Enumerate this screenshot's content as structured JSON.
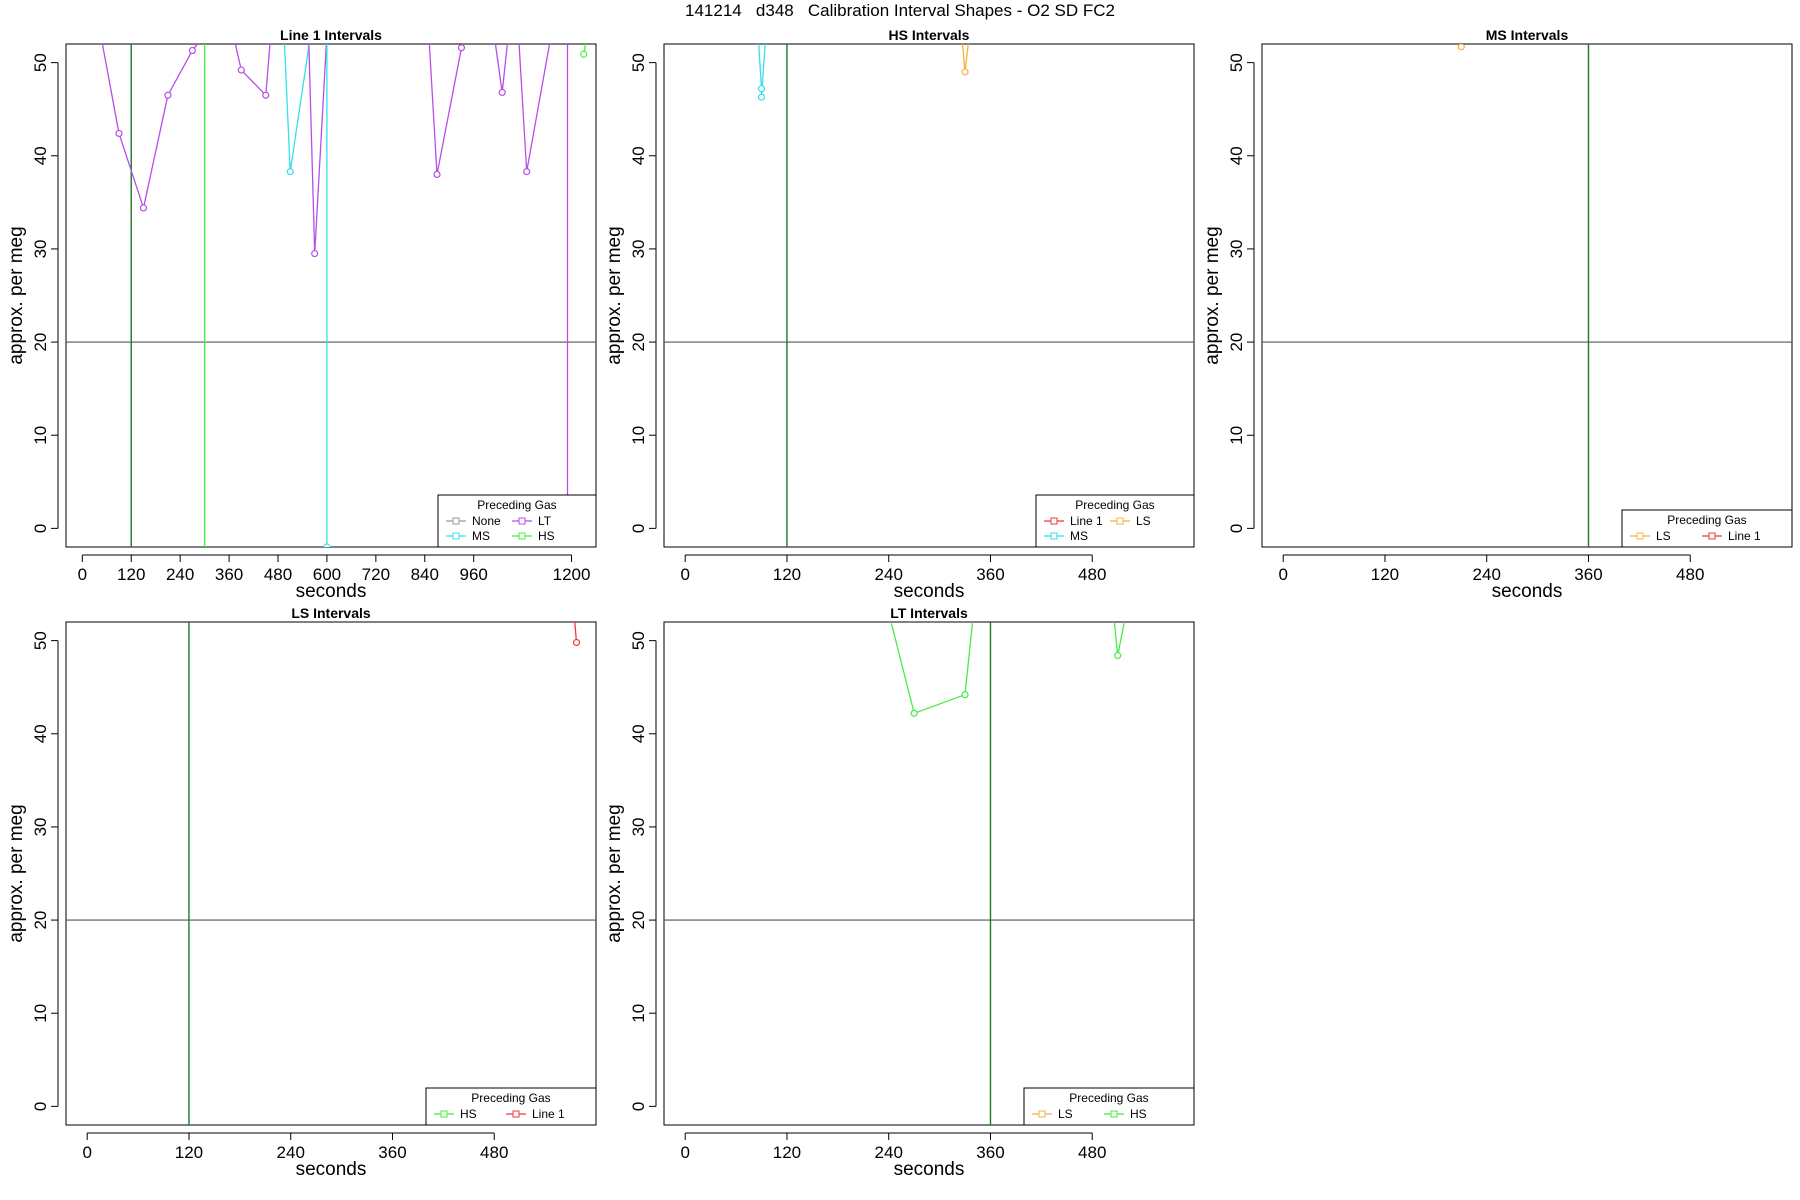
{
  "figure": {
    "title": "141214   d348   Calibration Interval Shapes - O2 SD FC2"
  },
  "colors": {
    "None": "#999999",
    "MS": "#33e0ec",
    "LT": "#b84dea",
    "HS": "#44ee44",
    "Line 1": "#ee3b3b",
    "LS": "#f5b040",
    "axis": "#000000",
    "hline": "#555555",
    "vline": "#1f7a1f"
  },
  "chart_data": [
    {
      "type": "line",
      "title": "Line 1 Intervals",
      "xlabel": "seconds",
      "ylabel": "approx. per meg",
      "xlim": [
        -40,
        1260
      ],
      "ylim": [
        -2,
        52
      ],
      "xticks": [
        0,
        120,
        240,
        360,
        480,
        600,
        720,
        840,
        960,
        1200
      ],
      "yticks": [
        0,
        10,
        20,
        30,
        40,
        50
      ],
      "hline": 20,
      "vlines": [
        {
          "x": 120,
          "color": "vline"
        },
        {
          "x": 300,
          "color": "HS"
        }
      ],
      "legend": {
        "title": "Preceding Gas",
        "position": "bottom-right",
        "entries": [
          "None",
          "LT",
          "MS",
          "HS"
        ],
        "columns": 2
      },
      "series": [
        {
          "name": "LT",
          "points": [
            [
              45,
              53
            ],
            [
              90,
              42.4
            ],
            [
              150,
              34.4
            ],
            [
              210,
              46.5
            ],
            [
              270,
              51.3
            ],
            [
              300,
              53
            ]
          ]
        },
        {
          "name": "LT",
          "points": [
            [
              370,
              53
            ],
            [
              390,
              49.2
            ],
            [
              450,
              46.5
            ],
            [
              462,
              53
            ]
          ]
        },
        {
          "name": "MS",
          "points": [
            [
              495,
              53
            ],
            [
              510,
              38.3
            ],
            [
              560,
              53
            ]
          ]
        },
        {
          "name": "LT",
          "points": [
            [
              555,
              53
            ],
            [
              570,
              29.5
            ],
            [
              600,
              53
            ]
          ]
        },
        {
          "name": "MS",
          "points": [
            [
              600,
              53
            ],
            [
              600,
              -2
            ]
          ]
        },
        {
          "name": "LT",
          "points": [
            [
              850,
              53
            ],
            [
              870,
              38
            ],
            [
              930,
              51.6
            ],
            [
              940,
              53
            ]
          ]
        },
        {
          "name": "LT",
          "points": [
            [
              1010,
              53
            ],
            [
              1030,
              46.8
            ],
            [
              1045,
              53
            ]
          ]
        },
        {
          "name": "LT",
          "points": [
            [
              1070,
              53
            ],
            [
              1090,
              38.3
            ],
            [
              1150,
              53
            ]
          ]
        },
        {
          "name": "LT",
          "points": [
            [
              1190,
              53
            ],
            [
              1190,
              -2
            ]
          ]
        },
        {
          "name": "HS",
          "points": [
            [
              1230,
              50.9
            ],
            [
              1238,
              53
            ]
          ]
        }
      ]
    },
    {
      "type": "line",
      "title": "HS Intervals",
      "xlabel": "seconds",
      "ylabel": "approx. per meg",
      "xlim": [
        -25,
        600
      ],
      "ylim": [
        -2,
        52
      ],
      "xticks": [
        0,
        120,
        240,
        360,
        480
      ],
      "yticks": [
        0,
        10,
        20,
        30,
        40,
        50
      ],
      "hline": 20,
      "vlines": [
        {
          "x": 120,
          "color": "vline"
        }
      ],
      "legend": {
        "title": "Preceding Gas",
        "position": "bottom-right",
        "entries": [
          "Line 1",
          "LS",
          "MS"
        ],
        "columns": 2
      },
      "series": [
        {
          "name": "MS",
          "points": [
            [
              86,
              53
            ],
            [
              90,
              47.2
            ],
            [
              90,
              46.3
            ],
            [
              95,
              53
            ]
          ]
        },
        {
          "name": "LS",
          "points": [
            [
              326,
              53
            ],
            [
              330,
              49
            ],
            [
              335,
              53
            ]
          ]
        }
      ]
    },
    {
      "type": "line",
      "title": "MS Intervals",
      "xlabel": "seconds",
      "ylabel": "approx. per meg",
      "xlim": [
        -25,
        600
      ],
      "ylim": [
        -2,
        52
      ],
      "xticks": [
        0,
        120,
        240,
        360,
        480
      ],
      "yticks": [
        0,
        10,
        20,
        30,
        40,
        50
      ],
      "hline": 20,
      "vlines": [
        {
          "x": 360,
          "color": "vline"
        }
      ],
      "legend": {
        "title": "Preceding Gas",
        "position": "bottom-right",
        "entries": [
          "LS",
          "Line 1"
        ],
        "columns": 2
      },
      "series": [
        {
          "name": "LS",
          "points": [
            [
              210,
              51.7
            ]
          ]
        }
      ]
    },
    {
      "type": "line",
      "title": "LS Intervals",
      "xlabel": "seconds",
      "ylabel": "approx. per meg",
      "xlim": [
        -25,
        600
      ],
      "ylim": [
        -2,
        52
      ],
      "xticks": [
        0,
        120,
        240,
        360,
        480
      ],
      "yticks": [
        0,
        10,
        20,
        30,
        40,
        50
      ],
      "hline": 20,
      "vlines": [
        {
          "x": 120,
          "color": "vline"
        }
      ],
      "legend": {
        "title": "Preceding Gas",
        "position": "bottom-right",
        "entries": [
          "HS",
          "Line 1"
        ],
        "columns": 2
      },
      "series": [
        {
          "name": "Line 1",
          "points": [
            [
              574,
              53
            ],
            [
              577,
              49.8
            ]
          ]
        }
      ]
    },
    {
      "type": "line",
      "title": "LT Intervals",
      "xlabel": "seconds",
      "ylabel": "approx. per meg",
      "xlim": [
        -25,
        600
      ],
      "ylim": [
        -2,
        52
      ],
      "xticks": [
        0,
        120,
        240,
        360,
        480
      ],
      "yticks": [
        0,
        10,
        20,
        30,
        40,
        50
      ],
      "hline": 20,
      "vlines": [
        {
          "x": 360,
          "color": "vline"
        }
      ],
      "legend": {
        "title": "Preceding Gas",
        "position": "bottom-right",
        "entries": [
          "LS",
          "HS"
        ],
        "columns": 2
      },
      "series": [
        {
          "name": "HS",
          "points": [
            [
              240,
              53
            ],
            [
              270,
              42.2
            ],
            [
              330,
              44.2
            ],
            [
              340,
              53
            ]
          ]
        },
        {
          "name": "HS",
          "points": [
            [
              505,
              53
            ],
            [
              510,
              48.4
            ],
            [
              520,
              53
            ]
          ]
        }
      ]
    }
  ]
}
